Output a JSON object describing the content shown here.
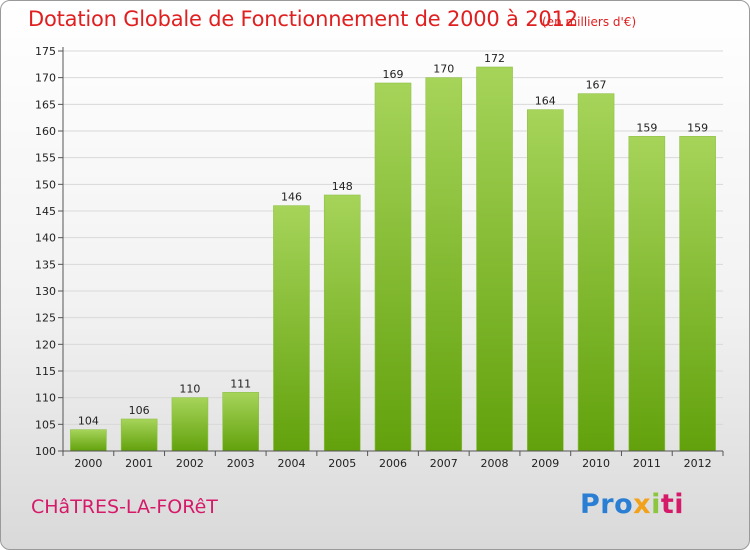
{
  "header": {
    "title": "Dotation Globale de Fonctionnement de 2000 à 2012",
    "unit": "(en milliers d'€)"
  },
  "footer": {
    "commune": "CHâTRES-LA-FORêT",
    "logo": {
      "p1": "Pro",
      "p2": "x",
      "p3": "i",
      "p4": "ti"
    }
  },
  "colors": {
    "bar_light": "#a6d45a",
    "bar_dark": "#62a10c",
    "title": "#e02020",
    "commune": "#d61a6a"
  },
  "chart_data": {
    "type": "bar",
    "title": "Dotation Globale de Fonctionnement de 2000 à 2012",
    "subtitle": "(en milliers d'€)",
    "categories": [
      "2000",
      "2001",
      "2002",
      "2003",
      "2004",
      "2005",
      "2006",
      "2007",
      "2008",
      "2009",
      "2010",
      "2011",
      "2012"
    ],
    "values": [
      104,
      106,
      110,
      111,
      146,
      148,
      169,
      170,
      172,
      164,
      167,
      159,
      159
    ],
    "ylim": [
      100,
      175
    ],
    "yticks": [
      100,
      105,
      110,
      115,
      120,
      125,
      130,
      135,
      140,
      145,
      150,
      155,
      160,
      165,
      170,
      175
    ],
    "grid": true,
    "legend": "none"
  }
}
